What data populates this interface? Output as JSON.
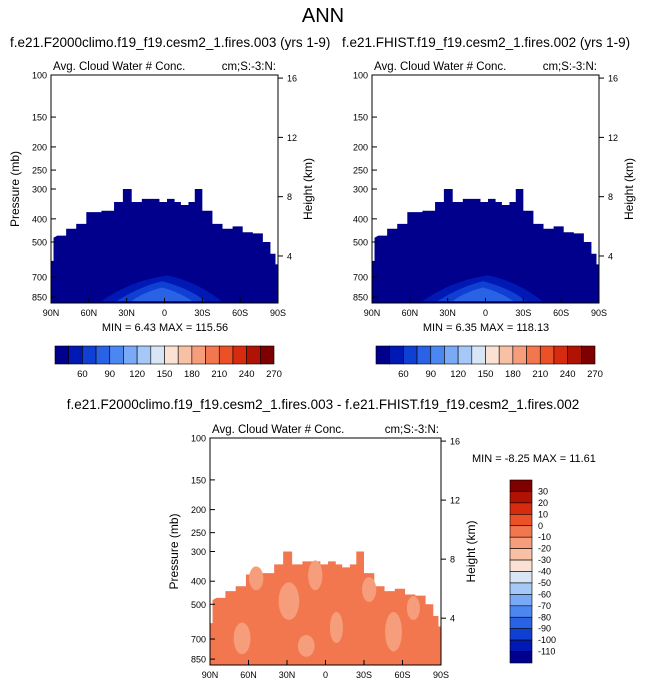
{
  "title": "ANN",
  "colors": {
    "abs_levels": [
      "#00008c",
      "#0018b4",
      "#0f3fd3",
      "#2a62e6",
      "#4c86f0",
      "#7aa9f5",
      "#a6c8f7",
      "#d7e5f5",
      "#fbe1d3",
      "#f8c0a5",
      "#f69d7b",
      "#f2774f",
      "#ec5027",
      "#d62b0f",
      "#b01203",
      "#7e0000"
    ],
    "diff_levels": [
      "#00008c",
      "#0018b4",
      "#0f3fd3",
      "#2a62e6",
      "#4c86f0",
      "#7aa9f5",
      "#a6c8f7",
      "#d7e5f5",
      "#fbe1d3",
      "#f8c0a5",
      "#f69d7b",
      "#f2774f",
      "#ec5027",
      "#d62b0f",
      "#b01203",
      "#7e0000"
    ]
  },
  "chart_data": [
    {
      "type": "heatmap",
      "title": "f.e21.F2000climo.f19_f19.cesm2_1.fires.003 (yrs 1-9)",
      "subtitle_left": "Avg. Cloud Water # Conc.",
      "subtitle_right": "cm;S:-3:N:",
      "xlabel": "",
      "ylabel": "Pressure (mb)",
      "ylabel_right": "Height (km)",
      "x_ticks": [
        "90N",
        "60N",
        "30N",
        "0",
        "30S",
        "60S",
        "90S"
      ],
      "y_ticks": [
        "100",
        "150",
        "200",
        "250",
        "300",
        "400",
        "500",
        "700",
        "850"
      ],
      "y_right_ticks": [
        "16",
        "12",
        "8",
        "4"
      ],
      "min_max": "MIN =   6.43   MAX = 115.56",
      "colorbar_labels": [
        "60",
        "90",
        "120",
        "150",
        "180",
        "210",
        "240",
        "270"
      ]
    },
    {
      "type": "heatmap",
      "title": "f.e21.FHIST.f19_f19.cesm2_1.fires.002 (yrs 1-9)",
      "subtitle_left": "Avg. Cloud Water # Conc.",
      "subtitle_right": "cm;S:-3:N:",
      "xlabel": "",
      "ylabel": "",
      "ylabel_right": "Height (km)",
      "x_ticks": [
        "90N",
        "60N",
        "30N",
        "0",
        "30S",
        "60S",
        "90S"
      ],
      "y_ticks": [
        "100",
        "150",
        "200",
        "250",
        "300",
        "400",
        "500",
        "700",
        "850"
      ],
      "y_right_ticks": [
        "16",
        "12",
        "8",
        "4"
      ],
      "min_max": "MIN =   6.35   MAX = 118.13",
      "colorbar_labels": [
        "60",
        "90",
        "120",
        "150",
        "180",
        "210",
        "240",
        "270"
      ]
    },
    {
      "type": "heatmap",
      "title": "f.e21.F2000climo.f19_f19.cesm2_1.fires.003 - f.e21.FHIST.f19_f19.cesm2_1.fires.002",
      "subtitle_left": "Avg. Cloud Water # Conc.",
      "subtitle_right": "cm;S:-3:N:",
      "xlabel": "",
      "ylabel": "Pressure (mb)",
      "ylabel_right": "Height (km)",
      "x_ticks": [
        "90N",
        "60N",
        "30N",
        "0",
        "30S",
        "60S",
        "90S"
      ],
      "y_ticks": [
        "100",
        "150",
        "200",
        "250",
        "300",
        "400",
        "500",
        "700",
        "850"
      ],
      "y_right_ticks": [
        "16",
        "12",
        "8",
        "4"
      ],
      "min_max": "MIN = -8.25   MAX = 11.61",
      "colorbar_labels": [
        "30",
        "20",
        "10",
        "0",
        "-10",
        "-20",
        "-30",
        "-40",
        "-50",
        "-60",
        "-70",
        "-80",
        "-90",
        "-100",
        "-110"
      ]
    }
  ]
}
